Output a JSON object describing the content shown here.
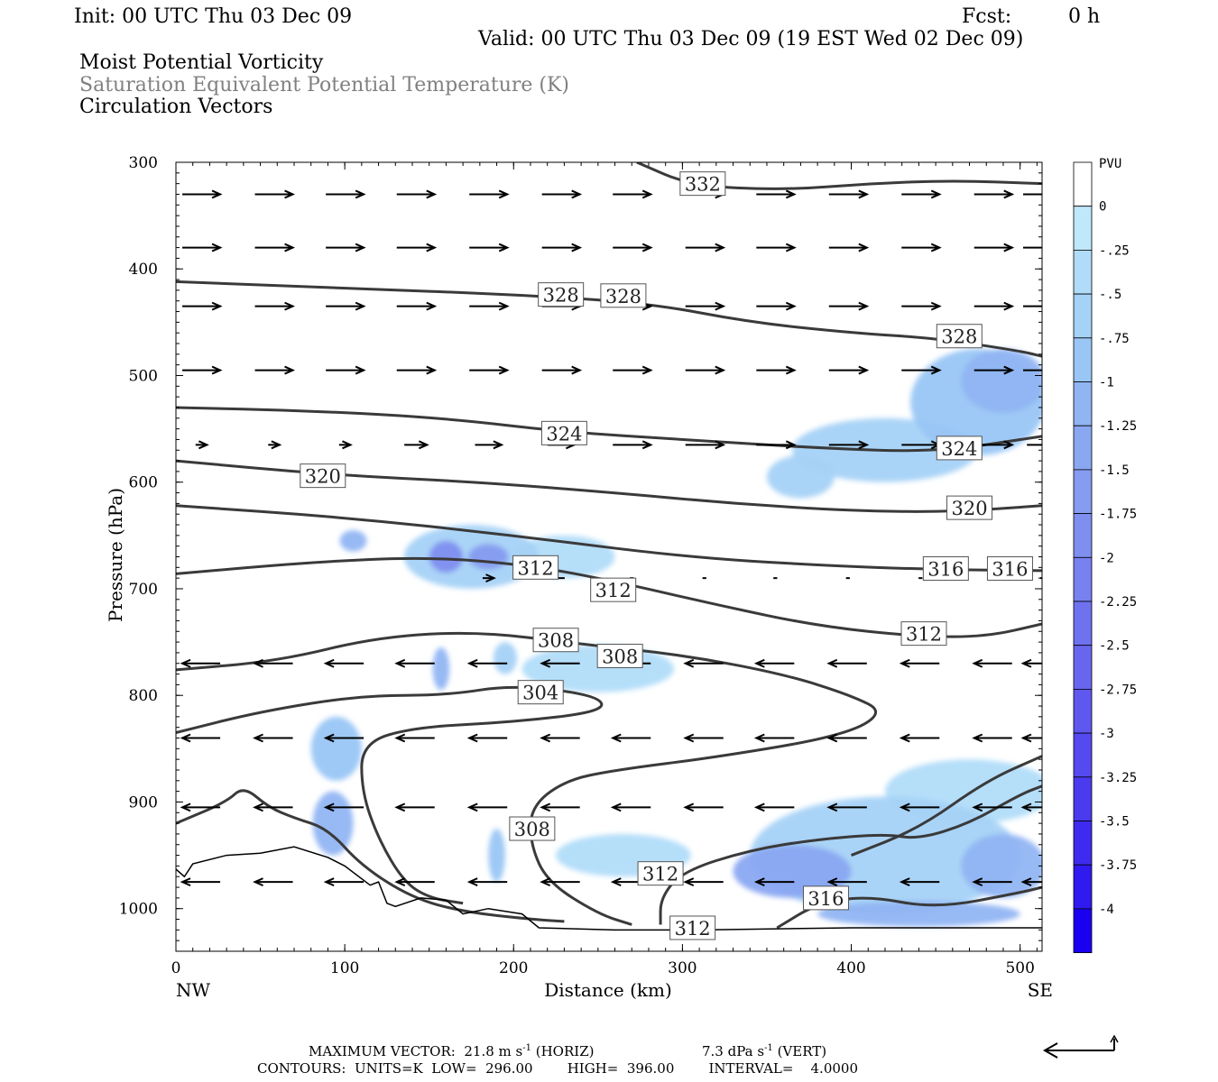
{
  "header": {
    "init": "Init: 00 UTC Thu 03 Dec 09",
    "fcst_label": "Fcst:",
    "fcst_value": "0 h",
    "valid": "Valid: 00 UTC Thu 03 Dec 09 (19 EST Wed 02 Dec 09)",
    "fields": [
      "Moist Potential Vorticity",
      "Saturation Equivalent Potential Temperature (K)",
      "Circulation Vectors"
    ],
    "field_colors": [
      "#000000",
      "#808080",
      "#000000"
    ]
  },
  "chart_data": {
    "type": "heatmap",
    "xlabel": "Distance (km)",
    "ylabel": "Pressure (hPa)",
    "xlim": [
      0,
      513
    ],
    "ylim": [
      1040,
      300
    ],
    "x_ticks": [
      0,
      100,
      200,
      300,
      400,
      500
    ],
    "y_ticks": [
      300,
      400,
      500,
      600,
      700,
      800,
      900,
      1000
    ],
    "x_end_labels": {
      "left": "NW",
      "right": "SE"
    },
    "colorbar": {
      "unit": "PVU",
      "levels": [
        "0",
        "-.25",
        "-.5",
        "-.75",
        "-1",
        "-1.25",
        "-1.5",
        "-1.75",
        "-2",
        "-2.25",
        "-2.5",
        "-2.75",
        "-3",
        "-3.25",
        "-3.5",
        "-3.75",
        "-4"
      ],
      "colors": [
        "#ffffff",
        "#bfe8fb",
        "#b1dcf9",
        "#a5d2f7",
        "#99c6f5",
        "#91b5f3",
        "#8aa8f2",
        "#869cf0",
        "#7f8ff0",
        "#7781ef",
        "#6f72ef",
        "#6866ef",
        "#5f58ef",
        "#554aef",
        "#4a3bef",
        "#3e2bef",
        "#2f1aef",
        "#1a00f0"
      ]
    },
    "contour_labels": [
      {
        "text": "332",
        "x": 312,
        "p": 320
      },
      {
        "text": "328",
        "x": 228,
        "p": 424
      },
      {
        "text": "328",
        "x": 265,
        "p": 425
      },
      {
        "text": "328",
        "x": 464,
        "p": 463
      },
      {
        "text": "324",
        "x": 230,
        "p": 554
      },
      {
        "text": "324",
        "x": 464,
        "p": 568
      },
      {
        "text": "320",
        "x": 87,
        "p": 594
      },
      {
        "text": "320",
        "x": 470,
        "p": 624
      },
      {
        "text": "316",
        "x": 456,
        "p": 681
      },
      {
        "text": "316",
        "x": 494,
        "p": 681
      },
      {
        "text": "312",
        "x": 213,
        "p": 680
      },
      {
        "text": "312",
        "x": 259,
        "p": 701
      },
      {
        "text": "312",
        "x": 443,
        "p": 742
      },
      {
        "text": "312",
        "x": 287,
        "p": 967
      },
      {
        "text": "312",
        "x": 306,
        "p": 1018
      },
      {
        "text": "308",
        "x": 225,
        "p": 748
      },
      {
        "text": "308",
        "x": 263,
        "p": 763
      },
      {
        "text": "308",
        "x": 211,
        "p": 925
      },
      {
        "text": "316",
        "x": 385,
        "p": 990
      },
      {
        "text": "304",
        "x": 216,
        "p": 797
      }
    ],
    "isentropes": [
      {
        "level": 332,
        "points": [
          [
            273,
            300
          ],
          [
            305,
            322
          ],
          [
            360,
            326
          ],
          [
            410,
            320
          ],
          [
            460,
            317
          ],
          [
            513,
            320
          ]
        ]
      },
      {
        "level": 328,
        "points": [
          [
            0,
            412
          ],
          [
            100,
            418
          ],
          [
            200,
            424
          ],
          [
            280,
            432
          ],
          [
            340,
            450
          ],
          [
            400,
            460
          ],
          [
            450,
            465
          ],
          [
            500,
            477
          ],
          [
            513,
            482
          ]
        ]
      },
      {
        "level": 324,
        "points": [
          [
            0,
            530
          ],
          [
            80,
            533
          ],
          [
            160,
            540
          ],
          [
            230,
            553
          ],
          [
            300,
            560
          ],
          [
            380,
            568
          ],
          [
            450,
            572
          ],
          [
            513,
            557
          ]
        ]
      },
      {
        "level": 320,
        "points": [
          [
            0,
            580
          ],
          [
            90,
            593
          ],
          [
            180,
            600
          ],
          [
            260,
            610
          ],
          [
            330,
            620
          ],
          [
            400,
            627
          ],
          [
            460,
            628
          ],
          [
            513,
            622
          ]
        ]
      },
      {
        "level": 316,
        "points": [
          [
            0,
            622
          ],
          [
            100,
            633
          ],
          [
            200,
            650
          ],
          [
            300,
            670
          ],
          [
            380,
            678
          ],
          [
            450,
            682
          ],
          [
            513,
            683
          ]
        ]
      },
      {
        "level": 312,
        "points": [
          [
            0,
            686
          ],
          [
            80,
            675
          ],
          [
            150,
            670
          ],
          [
            210,
            678
          ],
          [
            260,
            693
          ],
          [
            320,
            715
          ],
          [
            380,
            735
          ],
          [
            440,
            745
          ],
          [
            480,
            745
          ],
          [
            513,
            733
          ]
        ]
      },
      {
        "level": 308,
        "points": [
          [
            0,
            776
          ],
          [
            60,
            768
          ],
          [
            120,
            745
          ],
          [
            180,
            740
          ],
          [
            240,
            752
          ],
          [
            300,
            762
          ],
          [
            360,
            780
          ],
          [
            400,
            800
          ],
          [
            420,
            816
          ],
          [
            395,
            838
          ],
          [
            320,
            858
          ],
          [
            260,
            870
          ],
          [
            230,
            880
          ],
          [
            210,
            905
          ],
          [
            210,
            940
          ],
          [
            220,
            975
          ],
          [
            250,
            1005
          ],
          [
            270,
            1015
          ]
        ]
      },
      {
        "level": 304,
        "points": [
          [
            0,
            835
          ],
          [
            50,
            815
          ],
          [
            110,
            800
          ],
          [
            160,
            800
          ],
          [
            200,
            790
          ],
          [
            250,
            800
          ],
          [
            254,
            815
          ],
          [
            200,
            825
          ],
          [
            140,
            830
          ],
          [
            110,
            845
          ],
          [
            110,
            890
          ],
          [
            120,
            935
          ],
          [
            135,
            975
          ],
          [
            150,
            990
          ],
          [
            170,
            995
          ]
        ]
      },
      {
        "level": 312,
        "points": [
          [
            0,
            920
          ],
          [
            30,
            900
          ],
          [
            40,
            885
          ],
          [
            55,
            905
          ],
          [
            70,
            915
          ],
          [
            90,
            925
          ],
          [
            110,
            960
          ],
          [
            140,
            990
          ],
          [
            170,
            1003
          ],
          [
            210,
            1010
          ],
          [
            230,
            1012
          ]
        ]
      },
      {
        "level": 312,
        "points": [
          [
            287,
            1015
          ],
          [
            287,
            990
          ],
          [
            300,
            965
          ],
          [
            340,
            945
          ],
          [
            380,
            935
          ],
          [
            420,
            930
          ],
          [
            440,
            935
          ],
          [
            470,
            920
          ],
          [
            500,
            893
          ],
          [
            513,
            885
          ]
        ]
      },
      {
        "level": 316,
        "points": [
          [
            356,
            1018
          ],
          [
            380,
            995
          ],
          [
            410,
            988
          ],
          [
            450,
            1000
          ],
          [
            500,
            985
          ],
          [
            513,
            980
          ]
        ]
      },
      {
        "level": 316,
        "points": [
          [
            400,
            950
          ],
          [
            440,
            925
          ],
          [
            480,
            880
          ],
          [
            513,
            857
          ]
        ]
      }
    ],
    "terrain": {
      "surface_pressure": [
        [
          0,
          963
        ],
        [
          5,
          970
        ],
        [
          10,
          958
        ],
        [
          30,
          950
        ],
        [
          50,
          948
        ],
        [
          70,
          942
        ],
        [
          90,
          952
        ],
        [
          100,
          960
        ],
        [
          115,
          978
        ],
        [
          120,
          975
        ],
        [
          125,
          995
        ],
        [
          130,
          998
        ],
        [
          145,
          990
        ],
        [
          160,
          992
        ],
        [
          170,
          1005
        ],
        [
          185,
          1000
        ],
        [
          205,
          1005
        ],
        [
          215,
          1018
        ],
        [
          260,
          1020
        ],
        [
          310,
          1020
        ],
        [
          400,
          1018
        ],
        [
          513,
          1018
        ]
      ]
    },
    "mpv_regions": [
      {
        "x": 475,
        "p": 525,
        "rx": 40,
        "ry": 50,
        "value": -0.75
      },
      {
        "x": 420,
        "p": 570,
        "rx": 55,
        "ry": 30,
        "value": -0.5
      },
      {
        "x": 370,
        "p": 595,
        "rx": 20,
        "ry": 20,
        "value": -0.5
      },
      {
        "x": 490,
        "p": 505,
        "rx": 25,
        "ry": 30,
        "value": -1.0
      },
      {
        "x": 175,
        "p": 670,
        "rx": 40,
        "ry": 30,
        "value": -0.5
      },
      {
        "x": 160,
        "p": 670,
        "rx": 10,
        "ry": 15,
        "value": -1.75
      },
      {
        "x": 185,
        "p": 670,
        "rx": 12,
        "ry": 12,
        "value": -1.5
      },
      {
        "x": 105,
        "p": 655,
        "rx": 8,
        "ry": 10,
        "value": -1.0
      },
      {
        "x": 230,
        "p": 670,
        "rx": 30,
        "ry": 20,
        "value": -0.25
      },
      {
        "x": 250,
        "p": 775,
        "rx": 45,
        "ry": 22,
        "value": -0.25
      },
      {
        "x": 95,
        "p": 850,
        "rx": 15,
        "ry": 30,
        "value": -0.75
      },
      {
        "x": 93,
        "p": 920,
        "rx": 12,
        "ry": 30,
        "value": -1.0
      },
      {
        "x": 157,
        "p": 775,
        "rx": 5,
        "ry": 20,
        "value": -1.0
      },
      {
        "x": 195,
        "p": 765,
        "rx": 7,
        "ry": 15,
        "value": -0.5
      },
      {
        "x": 420,
        "p": 950,
        "rx": 80,
        "ry": 55,
        "value": -0.5
      },
      {
        "x": 365,
        "p": 965,
        "rx": 35,
        "ry": 25,
        "value": -1.25
      },
      {
        "x": 490,
        "p": 960,
        "rx": 25,
        "ry": 30,
        "value": -1.0
      },
      {
        "x": 470,
        "p": 890,
        "rx": 50,
        "ry": 30,
        "value": -0.25
      },
      {
        "x": 265,
        "p": 950,
        "rx": 40,
        "ry": 20,
        "value": -0.25
      },
      {
        "x": 440,
        "p": 1005,
        "rx": 60,
        "ry": 12,
        "value": -1.0
      },
      {
        "x": 190,
        "p": 950,
        "rx": 5,
        "ry": 25,
        "value": -0.75
      }
    ],
    "vectors": {
      "x": [
        15,
        58,
        100,
        142,
        185,
        228,
        270,
        313,
        355,
        398,
        441,
        484,
        513
      ],
      "rows": [
        {
          "p": 330,
          "u": [
            1,
            1,
            1,
            1,
            1,
            1,
            1,
            1,
            1,
            1,
            1,
            1,
            1
          ]
        },
        {
          "p": 380,
          "u": [
            1,
            1,
            1,
            1,
            1,
            1,
            1,
            1,
            1,
            1,
            1,
            1,
            1
          ]
        },
        {
          "p": 435,
          "u": [
            1,
            1,
            1,
            1,
            1,
            1,
            1,
            1,
            1,
            1,
            1,
            1,
            1
          ]
        },
        {
          "p": 495,
          "u": [
            1,
            1,
            1,
            1,
            1,
            1,
            1,
            1,
            1,
            1,
            1,
            1,
            1
          ]
        },
        {
          "p": 565,
          "u": [
            0.3,
            0.3,
            0.3,
            0.6,
            0.7,
            0.7,
            1,
            1,
            1,
            1,
            1,
            1,
            0.8
          ]
        },
        {
          "p": 690,
          "u": [
            0,
            0,
            0,
            0,
            0.3,
            0.2,
            0.1,
            0.1,
            0.1,
            0.1,
            0.1,
            0.1,
            0.1
          ]
        },
        {
          "p": 770,
          "u": [
            -1,
            -1,
            -1,
            -1,
            -1,
            -1,
            -1,
            -1,
            -1,
            -1,
            -1,
            -1,
            -1
          ]
        },
        {
          "p": 840,
          "u": [
            -1,
            -1,
            -1,
            -1,
            -1,
            -1,
            -1,
            -1,
            -1,
            -1,
            -1,
            -1,
            -1
          ]
        },
        {
          "p": 905,
          "u": [
            -1,
            -1,
            -1,
            -1,
            -1,
            -1,
            -1,
            -1,
            -1,
            -1,
            -1,
            -1,
            -1
          ]
        },
        {
          "p": 975,
          "u": [
            -1,
            -1,
            -1,
            -1,
            -1,
            -1,
            -1,
            -1,
            -1,
            -1,
            -1,
            -1,
            -1
          ]
        }
      ]
    }
  },
  "footer": {
    "max_vector_prefix": "MAXIMUM VECTOR:  21.8 m s",
    "sup1": "-1",
    "horiz": " (HORIZ)",
    "vert_prefix": "7.3 dPa s",
    "sup2": "-1",
    "vert": " (VERT)",
    "contours": "CONTOURS:  UNITS=K  LOW=  296.00        HIGH=  396.00        INTERVAL=    4.0000"
  }
}
